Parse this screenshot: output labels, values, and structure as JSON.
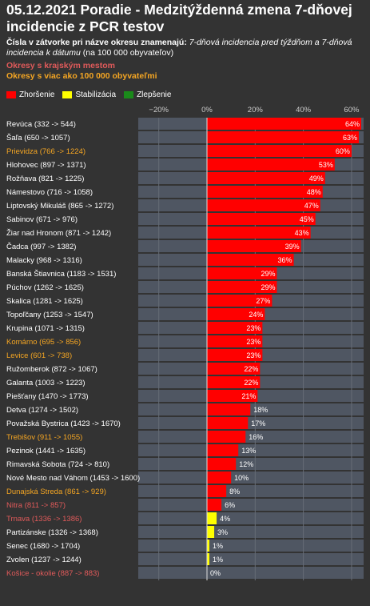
{
  "header": {
    "title": "05.12.2021 Poradie - Medzitýždenná zmena 7-dňovej incidencie z PCR testov",
    "subtitle_bold": "Čísla v zátvorke pri názve okresu znamenajú:",
    "subtitle_italic": " 7-dňová incidencia pred týždňom a 7-dňová incidencia k dátumu",
    "subtitle_rest": " (na 100 000 obyvateľov)",
    "note_regional": "Okresy s krajským mestom",
    "note_large": "Okresy s viac ako 100 000 obyvateľmi"
  },
  "legend": [
    {
      "label": "Zhoršenie",
      "color": "#ff0000"
    },
    {
      "label": "Stabilizácia",
      "color": "#ffff00"
    },
    {
      "label": "Zlepšenie",
      "color": "#1a8a1a"
    }
  ],
  "colors": {
    "background": "#333333",
    "track": "#4f5662",
    "label_default": "#ffffff",
    "label_regional": "#e05a5a",
    "label_large": "#f5a623",
    "gridline": "#666c76"
  },
  "chart_data": {
    "type": "bar",
    "orientation": "horizontal",
    "xlim": [
      -30,
      66
    ],
    "x_ticks": [
      -20,
      0,
      20,
      40,
      60
    ],
    "x_tick_labels": [
      "−20%",
      "0%",
      "20%",
      "40%",
      "60%"
    ],
    "categories": [
      {
        "label": "Revúca (332 -> 544)",
        "value": 64,
        "value_label": "64%",
        "group": "default",
        "status": "worse"
      },
      {
        "label": "Šaľa (650 -> 1057)",
        "value": 63,
        "value_label": "63%",
        "group": "default",
        "status": "worse"
      },
      {
        "label": "Prievidza (766 -> 1224)",
        "value": 60,
        "value_label": "60%",
        "group": "large",
        "status": "worse"
      },
      {
        "label": "Hlohovec (897 -> 1371)",
        "value": 53,
        "value_label": "53%",
        "group": "default",
        "status": "worse"
      },
      {
        "label": "Rožňava (821 -> 1225)",
        "value": 49,
        "value_label": "49%",
        "group": "default",
        "status": "worse"
      },
      {
        "label": "Námestovo (716 -> 1058)",
        "value": 48,
        "value_label": "48%",
        "group": "default",
        "status": "worse"
      },
      {
        "label": "Liptovský Mikuláš (865 -> 1272)",
        "value": 47,
        "value_label": "47%",
        "group": "default",
        "status": "worse"
      },
      {
        "label": "Sabinov (671 -> 976)",
        "value": 45,
        "value_label": "45%",
        "group": "default",
        "status": "worse"
      },
      {
        "label": "Žiar nad Hronom (871 -> 1242)",
        "value": 43,
        "value_label": "43%",
        "group": "default",
        "status": "worse"
      },
      {
        "label": "Čadca (997 -> 1382)",
        "value": 39,
        "value_label": "39%",
        "group": "default",
        "status": "worse"
      },
      {
        "label": "Malacky (968 -> 1316)",
        "value": 36,
        "value_label": "36%",
        "group": "default",
        "status": "worse"
      },
      {
        "label": "Banská Štiavnica (1183 -> 1531)",
        "value": 29,
        "value_label": "29%",
        "group": "default",
        "status": "worse"
      },
      {
        "label": "Púchov (1262 -> 1625)",
        "value": 29,
        "value_label": "29%",
        "group": "default",
        "status": "worse"
      },
      {
        "label": "Skalica (1281 -> 1625)",
        "value": 27,
        "value_label": "27%",
        "group": "default",
        "status": "worse"
      },
      {
        "label": "Topoľčany (1253 -> 1547)",
        "value": 24,
        "value_label": "24%",
        "group": "default",
        "status": "worse"
      },
      {
        "label": "Krupina (1071 -> 1315)",
        "value": 23,
        "value_label": "23%",
        "group": "default",
        "status": "worse"
      },
      {
        "label": "Komárno (695 -> 856)",
        "value": 23,
        "value_label": "23%",
        "group": "large",
        "status": "worse"
      },
      {
        "label": "Levice (601 -> 738)",
        "value": 23,
        "value_label": "23%",
        "group": "large",
        "status": "worse"
      },
      {
        "label": "Ružomberok (872 -> 1067)",
        "value": 22,
        "value_label": "22%",
        "group": "default",
        "status": "worse"
      },
      {
        "label": "Galanta (1003 -> 1223)",
        "value": 22,
        "value_label": "22%",
        "group": "default",
        "status": "worse"
      },
      {
        "label": "Piešťany (1470 -> 1773)",
        "value": 21,
        "value_label": "21%",
        "group": "default",
        "status": "worse"
      },
      {
        "label": "Detva (1274 -> 1502)",
        "value": 18,
        "value_label": "18%",
        "group": "default",
        "status": "worse"
      },
      {
        "label": "Považská Bystrica (1423 -> 1670)",
        "value": 17,
        "value_label": "17%",
        "group": "default",
        "status": "worse"
      },
      {
        "label": "Trebišov (911 -> 1055)",
        "value": 16,
        "value_label": "16%",
        "group": "large",
        "status": "worse"
      },
      {
        "label": "Pezinok (1441 -> 1635)",
        "value": 13,
        "value_label": "13%",
        "group": "default",
        "status": "worse"
      },
      {
        "label": "Rimavská Sobota (724 -> 810)",
        "value": 12,
        "value_label": "12%",
        "group": "default",
        "status": "worse"
      },
      {
        "label": "Nové Mesto nad Váhom (1453 -> 1600)",
        "value": 10,
        "value_label": "10%",
        "group": "default",
        "status": "worse"
      },
      {
        "label": "Dunajská Streda (861 -> 929)",
        "value": 8,
        "value_label": "8%",
        "group": "large",
        "status": "worse"
      },
      {
        "label": "Nitra (811 -> 857)",
        "value": 6,
        "value_label": "6%",
        "group": "regional",
        "status": "worse"
      },
      {
        "label": "Trnava (1336 -> 1386)",
        "value": 4,
        "value_label": "4%",
        "group": "regional",
        "status": "stable"
      },
      {
        "label": "Partizánske (1326 -> 1368)",
        "value": 3,
        "value_label": "3%",
        "group": "default",
        "status": "stable"
      },
      {
        "label": "Senec (1680 -> 1704)",
        "value": 1,
        "value_label": "1%",
        "group": "default",
        "status": "stable"
      },
      {
        "label": "Zvolen (1237 -> 1244)",
        "value": 1,
        "value_label": "1%",
        "group": "default",
        "status": "stable"
      },
      {
        "label": "Košice - okolie (887 -> 883)",
        "value": 0,
        "value_label": "0%",
        "group": "regional",
        "status": "stable"
      }
    ]
  }
}
